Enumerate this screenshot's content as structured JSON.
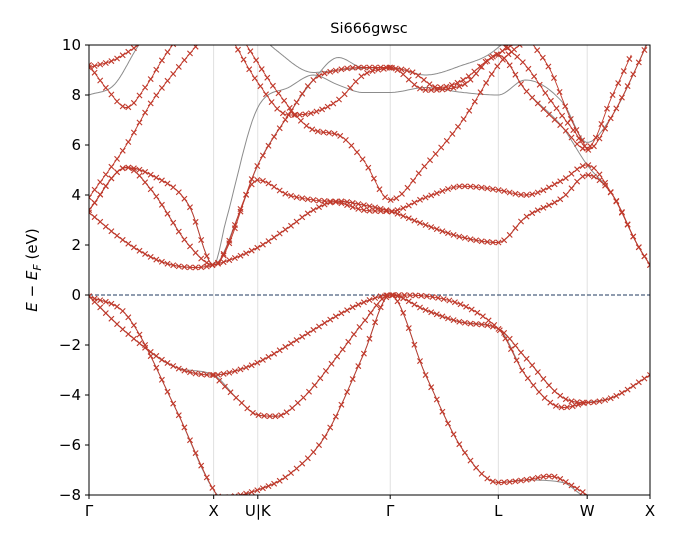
{
  "chart_data": {
    "type": "line",
    "title": "Si666gwsc",
    "ylabel_parts": {
      "e": "E",
      "minus": " − ",
      "ef": "E",
      "sub": "F",
      "unit": "  (eV)"
    },
    "xlabel": "",
    "ylim": [
      -8,
      10
    ],
    "yticks": [
      -8,
      -6,
      -4,
      -2,
      0,
      2,
      4,
      6,
      8,
      10
    ],
    "k_points": [
      {
        "label": "Γ",
        "x": 0.0
      },
      {
        "label": "X",
        "x": 1.0
      },
      {
        "label": "U|K",
        "x": 1.354
      },
      {
        "label": "Γ",
        "x": 2.416
      },
      {
        "label": "L",
        "x": 3.283
      },
      {
        "label": "W",
        "x": 3.996
      },
      {
        "label": "X",
        "x": 4.5
      }
    ],
    "fermi_level": 0,
    "grid": "vertical lines at high-symmetry points",
    "colors": {
      "interpolated": "#8c8c8c",
      "computed": "#c0392b",
      "fermi": "#1f3a5f",
      "grid": "#d9d9d9"
    },
    "series": [
      {
        "type": "wannier-interpolated",
        "points": [
          [
            0,
            -0.05
          ],
          [
            0.3,
            -0.8
          ],
          [
            0.7,
            -4.6
          ],
          [
            1.0,
            -7.8
          ],
          [
            1.1,
            -8.2
          ],
          [
            1.3,
            -7.9
          ],
          [
            1.354,
            -7.8
          ],
          [
            1.6,
            -7.2
          ],
          [
            1.9,
            -5.6
          ],
          [
            2.2,
            -2.4
          ],
          [
            2.416,
            0
          ],
          [
            2.7,
            -0.6
          ],
          [
            3.0,
            -1.1
          ],
          [
            3.283,
            -1.35
          ],
          [
            3.5,
            -2.5
          ],
          [
            3.8,
            -4.1
          ],
          [
            3.996,
            -4.3
          ],
          [
            4.2,
            -4.1
          ],
          [
            4.5,
            -3.2
          ]
        ]
      },
      {
        "type": "wannier-interpolated",
        "points": [
          [
            0,
            -0.05
          ],
          [
            0.3,
            -1.5
          ],
          [
            0.7,
            -2.9
          ],
          [
            1.0,
            -3.2
          ],
          [
            1.2,
            -3.0
          ],
          [
            1.354,
            -2.7
          ],
          [
            1.7,
            -1.7
          ],
          [
            2.0,
            -0.8
          ],
          [
            2.2,
            -0.3
          ],
          [
            2.416,
            0
          ],
          [
            2.7,
            -3.2
          ],
          [
            3.0,
            -6.2
          ],
          [
            3.283,
            -7.5
          ],
          [
            3.5,
            -7.4
          ],
          [
            3.8,
            -7.5
          ],
          [
            3.996,
            -8.1
          ],
          [
            4.5,
            -8.3
          ]
        ]
      },
      {
        "type": "wannier-interpolated",
        "points": [
          [
            0,
            -0.05
          ],
          [
            0.3,
            -1.5
          ],
          [
            0.7,
            -2.9
          ],
          [
            1.0,
            -3.2
          ],
          [
            1.2,
            -4.2
          ],
          [
            1.354,
            -4.8
          ],
          [
            1.5,
            -4.85
          ],
          [
            1.7,
            -4.2
          ],
          [
            2.0,
            -2.4
          ],
          [
            2.2,
            -1.1
          ],
          [
            2.416,
            0
          ],
          [
            2.7,
            -0.6
          ],
          [
            3.0,
            -1.1
          ],
          [
            3.283,
            -1.35
          ],
          [
            3.5,
            -3.2
          ],
          [
            3.8,
            -4.5
          ],
          [
            3.996,
            -4.3
          ],
          [
            4.2,
            -4.1
          ],
          [
            4.5,
            -3.2
          ]
        ]
      },
      {
        "type": "wannier-interpolated",
        "points": [
          [
            0,
            3.3
          ],
          [
            0.3,
            2.1
          ],
          [
            0.6,
            1.3
          ],
          [
            0.85,
            1.1
          ],
          [
            1.0,
            1.2
          ],
          [
            1.354,
            1.9
          ],
          [
            1.6,
            2.7
          ],
          [
            1.8,
            3.4
          ],
          [
            2.0,
            3.75
          ],
          [
            2.2,
            3.6
          ],
          [
            2.416,
            3.35
          ],
          [
            2.7,
            2.8
          ],
          [
            3.0,
            2.3
          ],
          [
            3.283,
            2.1
          ],
          [
            3.5,
            3.1
          ],
          [
            3.8,
            3.9
          ],
          [
            3.996,
            4.8
          ],
          [
            4.2,
            4.0
          ],
          [
            4.4,
            2.0
          ],
          [
            4.5,
            1.2
          ]
        ]
      },
      {
        "type": "wannier-interpolated",
        "points": [
          [
            0,
            3.4
          ],
          [
            0.3,
            5.1
          ],
          [
            0.5,
            4.2
          ],
          [
            0.8,
            2.0
          ],
          [
            1.0,
            1.2
          ],
          [
            1.2,
            3.2
          ],
          [
            1.354,
            5.2
          ],
          [
            1.6,
            7.2
          ],
          [
            1.8,
            8.6
          ],
          [
            2.0,
            9.5
          ],
          [
            2.2,
            9.1
          ],
          [
            2.416,
            9.1
          ],
          [
            2.7,
            8.2
          ],
          [
            3.0,
            8.4
          ],
          [
            3.283,
            9.6
          ],
          [
            3.5,
            8.2
          ],
          [
            3.8,
            6.7
          ],
          [
            3.996,
            5.2
          ],
          [
            4.2,
            4.0
          ],
          [
            4.4,
            2.0
          ],
          [
            4.5,
            1.2
          ]
        ]
      },
      {
        "type": "wannier-interpolated",
        "points": [
          [
            0,
            3.4
          ],
          [
            0.3,
            5.1
          ],
          [
            0.5,
            4.8
          ],
          [
            0.8,
            3.6
          ],
          [
            1.0,
            1.2
          ],
          [
            1.1,
            3.0
          ],
          [
            1.354,
            7.5
          ],
          [
            1.6,
            8.3
          ],
          [
            1.8,
            8.8
          ],
          [
            2.0,
            8.4
          ],
          [
            2.2,
            8.1
          ],
          [
            2.416,
            8.1
          ],
          [
            2.7,
            8.3
          ],
          [
            3.0,
            8.1
          ],
          [
            3.283,
            8.0
          ],
          [
            3.5,
            8.6
          ],
          [
            3.8,
            7.7
          ],
          [
            3.996,
            6.1
          ],
          [
            4.2,
            7.2
          ],
          [
            4.4,
            9.2
          ],
          [
            4.5,
            10.4
          ]
        ]
      },
      {
        "type": "wannier-interpolated",
        "points": [
          [
            0,
            8.0
          ],
          [
            0.2,
            8.4
          ],
          [
            0.4,
            10.0
          ],
          [
            0.5,
            10.6
          ]
        ]
      },
      {
        "type": "wannier-interpolated",
        "points": [
          [
            1.35,
            10.5
          ],
          [
            1.5,
            9.8
          ],
          [
            1.8,
            8.9
          ],
          [
            2.0,
            9.0
          ],
          [
            2.416,
            9.1
          ],
          [
            2.7,
            8.8
          ],
          [
            3.0,
            9.2
          ],
          [
            3.2,
            9.6
          ],
          [
            3.4,
            10.4
          ]
        ]
      },
      {
        "type": "dft-computed",
        "points": [
          [
            0,
            -0.05
          ],
          [
            0.3,
            -0.8
          ],
          [
            0.7,
            -4.6
          ],
          [
            1.0,
            -7.8
          ],
          [
            1.05,
            -8.1
          ],
          [
            1.354,
            -7.8
          ],
          [
            1.6,
            -7.2
          ],
          [
            1.9,
            -5.6
          ],
          [
            2.2,
            -2.4
          ],
          [
            2.416,
            0
          ],
          [
            2.7,
            -0.6
          ],
          [
            3.0,
            -1.1
          ],
          [
            3.283,
            -1.35
          ],
          [
            3.5,
            -2.5
          ],
          [
            3.8,
            -4.1
          ],
          [
            3.996,
            -4.3
          ],
          [
            4.2,
            -4.1
          ],
          [
            4.5,
            -3.2
          ]
        ]
      },
      {
        "type": "dft-computed",
        "points": [
          [
            0,
            -0.05
          ],
          [
            0.3,
            -1.5
          ],
          [
            0.7,
            -2.9
          ],
          [
            1.0,
            -3.2
          ],
          [
            1.2,
            -3.0
          ],
          [
            1.354,
            -2.7
          ],
          [
            1.7,
            -1.7
          ],
          [
            2.0,
            -0.8
          ],
          [
            2.2,
            -0.3
          ],
          [
            2.416,
            0
          ],
          [
            2.7,
            -3.2
          ],
          [
            3.0,
            -6.2
          ],
          [
            3.283,
            -7.5
          ],
          [
            3.5,
            -7.4
          ],
          [
            3.7,
            -7.25
          ],
          [
            3.9,
            -7.7
          ],
          [
            3.996,
            -8.0
          ]
        ]
      },
      {
        "type": "dft-computed",
        "points": [
          [
            1.0,
            -3.2
          ],
          [
            1.2,
            -4.2
          ],
          [
            1.354,
            -4.8
          ],
          [
            1.5,
            -4.85
          ],
          [
            1.7,
            -4.2
          ],
          [
            2.0,
            -2.4
          ],
          [
            2.2,
            -1.1
          ],
          [
            2.416,
            0
          ],
          [
            3.283,
            -1.35
          ],
          [
            3.5,
            -3.2
          ],
          [
            3.8,
            -4.5
          ],
          [
            3.996,
            -4.3
          ]
        ]
      },
      {
        "type": "dft-computed",
        "points": [
          [
            0,
            3.3
          ],
          [
            0.3,
            2.1
          ],
          [
            0.6,
            1.3
          ],
          [
            0.85,
            1.1
          ],
          [
            1.0,
            1.2
          ],
          [
            1.354,
            1.9
          ],
          [
            1.6,
            2.7
          ],
          [
            1.8,
            3.4
          ],
          [
            2.0,
            3.75
          ],
          [
            2.2,
            3.6
          ],
          [
            2.416,
            3.35
          ],
          [
            2.7,
            2.8
          ],
          [
            3.0,
            2.3
          ],
          [
            3.283,
            2.1
          ],
          [
            3.5,
            3.1
          ],
          [
            3.8,
            3.9
          ],
          [
            3.996,
            4.8
          ],
          [
            4.2,
            4.0
          ],
          [
            4.4,
            2.0
          ],
          [
            4.5,
            1.2
          ]
        ]
      },
      {
        "type": "dft-computed",
        "points": [
          [
            0,
            3.4
          ],
          [
            0.3,
            5.1
          ],
          [
            0.5,
            4.2
          ],
          [
            0.8,
            2.0
          ],
          [
            1.0,
            1.2
          ],
          [
            1.354,
            5.2
          ],
          [
            1.6,
            7.2
          ],
          [
            1.8,
            8.6
          ],
          [
            2.0,
            9.0
          ],
          [
            2.2,
            9.1
          ],
          [
            2.416,
            9.1
          ],
          [
            2.7,
            8.2
          ],
          [
            3.0,
            8.4
          ],
          [
            3.283,
            9.6
          ],
          [
            3.5,
            8.2
          ],
          [
            3.8,
            6.7
          ],
          [
            3.996,
            5.8
          ],
          [
            4.2,
            7.2
          ],
          [
            4.4,
            9.2
          ],
          [
            4.5,
            10.3
          ]
        ]
      },
      {
        "type": "dft-computed",
        "points": [
          [
            0,
            3.4
          ],
          [
            0.3,
            5.1
          ],
          [
            0.5,
            4.8
          ],
          [
            0.8,
            3.6
          ],
          [
            1.0,
            1.2
          ],
          [
            1.354,
            4.6
          ],
          [
            1.6,
            4.0
          ],
          [
            1.8,
            3.8
          ],
          [
            2.0,
            3.7
          ],
          [
            2.2,
            3.4
          ],
          [
            2.416,
            3.35
          ],
          [
            2.7,
            3.9
          ],
          [
            3.0,
            4.35
          ],
          [
            3.283,
            4.2
          ],
          [
            3.5,
            4.0
          ],
          [
            3.8,
            4.6
          ],
          [
            3.996,
            5.2
          ],
          [
            4.2,
            4.0
          ],
          [
            4.4,
            2.0
          ],
          [
            4.5,
            1.2
          ]
        ]
      },
      {
        "type": "dft-computed",
        "points": [
          [
            0,
            9.1
          ],
          [
            0.2,
            9.4
          ],
          [
            0.4,
            10.0
          ]
        ]
      },
      {
        "type": "dft-computed",
        "points": [
          [
            0,
            3.9
          ],
          [
            0.3,
            6.0
          ],
          [
            0.5,
            7.7
          ],
          [
            0.7,
            9.0
          ],
          [
            0.9,
            10.2
          ]
        ]
      },
      {
        "type": "dft-computed",
        "points": [
          [
            0,
            9.2
          ],
          [
            0.15,
            8.2
          ],
          [
            0.3,
            7.5
          ],
          [
            0.45,
            8.3
          ],
          [
            0.6,
            9.5
          ],
          [
            0.7,
            10.2
          ]
        ]
      },
      {
        "type": "dft-computed",
        "points": [
          [
            1.15,
            10.2
          ],
          [
            1.354,
            8.5
          ],
          [
            1.6,
            7.2
          ],
          [
            1.8,
            7.3
          ],
          [
            2.0,
            7.8
          ],
          [
            2.2,
            8.8
          ],
          [
            2.416,
            9.1
          ]
        ]
      },
      {
        "type": "dft-computed",
        "points": [
          [
            1.25,
            10.1
          ],
          [
            1.5,
            8.2
          ],
          [
            1.8,
            6.6
          ],
          [
            2.0,
            6.4
          ],
          [
            2.2,
            5.4
          ],
          [
            2.416,
            3.8
          ],
          [
            2.7,
            5.2
          ],
          [
            3.0,
            7.0
          ],
          [
            3.283,
            9.2
          ],
          [
            3.5,
            10.2
          ]
        ]
      },
      {
        "type": "dft-computed",
        "points": [
          [
            2.416,
            9.1
          ],
          [
            2.6,
            8.9
          ],
          [
            2.8,
            8.3
          ],
          [
            3.0,
            8.6
          ],
          [
            3.2,
            9.4
          ],
          [
            3.4,
            10.0
          ]
        ]
      },
      {
        "type": "dft-computed",
        "points": [
          [
            3.3,
            10.1
          ],
          [
            3.5,
            9.2
          ],
          [
            3.7,
            7.8
          ],
          [
            3.9,
            6.5
          ],
          [
            3.996,
            5.9
          ],
          [
            4.2,
            8.0
          ],
          [
            4.35,
            9.6
          ]
        ]
      },
      {
        "type": "dft-computed",
        "points": [
          [
            3.55,
            10.1
          ],
          [
            3.7,
            9.0
          ],
          [
            3.85,
            7.2
          ],
          [
            3.996,
            5.8
          ]
        ]
      }
    ]
  }
}
